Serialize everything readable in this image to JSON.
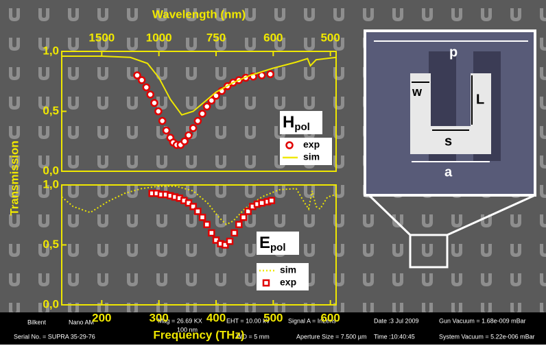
{
  "chart_data": [
    {
      "type": "line",
      "title": "Wavelength (nm)",
      "ylabel": "Transmission",
      "xlim": [
        130,
        610
      ],
      "ylim": [
        0,
        1
      ],
      "x2ticks": [
        {
          "value": 200,
          "label": "1500"
        },
        {
          "value": 300,
          "label": "1000"
        },
        {
          "value": 400,
          "label": "750"
        },
        {
          "value": 500,
          "label": "600"
        },
        {
          "value": 600,
          "label": "500"
        }
      ],
      "yticks": [
        {
          "value": 0,
          "label": "0,0"
        },
        {
          "value": 0.5,
          "label": "0,5"
        },
        {
          "value": 1,
          "label": "1,0"
        }
      ],
      "legend_title": "H",
      "legend_title_sub": "pol",
      "series": [
        {
          "name": "exp",
          "color": "#e00000",
          "style": "circle",
          "x": [
            262,
            270,
            278,
            285,
            292,
            299,
            306,
            313,
            320,
            325,
            331,
            338,
            345,
            352,
            360,
            368,
            376,
            384,
            392,
            400,
            410,
            420,
            430,
            440,
            452,
            465,
            480,
            495
          ],
          "values": [
            0.8,
            0.76,
            0.7,
            0.64,
            0.57,
            0.5,
            0.42,
            0.34,
            0.28,
            0.24,
            0.22,
            0.22,
            0.25,
            0.3,
            0.36,
            0.42,
            0.48,
            0.54,
            0.59,
            0.63,
            0.67,
            0.71,
            0.74,
            0.76,
            0.78,
            0.79,
            0.8,
            0.81
          ]
        },
        {
          "name": "sim",
          "color": "#f0e800",
          "style": "solid",
          "x": [
            130,
            200,
            250,
            280,
            300,
            320,
            340,
            360,
            380,
            400,
            430,
            460,
            500,
            540,
            560,
            565,
            575,
            610
          ],
          "values": [
            0.96,
            0.96,
            0.95,
            0.9,
            0.78,
            0.6,
            0.47,
            0.5,
            0.58,
            0.66,
            0.74,
            0.8,
            0.86,
            0.91,
            0.94,
            0.88,
            0.93,
            0.95
          ]
        }
      ]
    },
    {
      "type": "line",
      "xlabel": "Frequency (THz)",
      "xlim": [
        130,
        610
      ],
      "ylim": [
        0,
        1
      ],
      "xticks": [
        200,
        300,
        400,
        500,
        600
      ],
      "yticks": [
        {
          "value": 0,
          "label": "0,0"
        },
        {
          "value": 0.5,
          "label": "0,5"
        },
        {
          "value": 1,
          "label": "1,0"
        }
      ],
      "legend_title": "E",
      "legend_title_sub": "pol",
      "series": [
        {
          "name": "sim",
          "color": "#f0e800",
          "style": "dotted",
          "x": [
            130,
            150,
            180,
            210,
            240,
            270,
            300,
            330,
            360,
            385,
            405,
            418,
            430,
            450,
            480,
            510,
            540,
            555,
            562,
            568,
            575,
            582,
            595,
            610
          ],
          "values": [
            0.9,
            0.82,
            0.77,
            0.86,
            0.93,
            0.97,
            0.99,
            0.99,
            0.95,
            0.85,
            0.73,
            0.67,
            0.7,
            0.8,
            0.9,
            0.96,
            0.97,
            0.85,
            0.8,
            0.95,
            0.82,
            0.8,
            0.9,
            0.92
          ]
        },
        {
          "name": "exp",
          "color": "#e00000",
          "style": "square",
          "x": [
            288,
            296,
            304,
            312,
            320,
            328,
            336,
            344,
            352,
            360,
            368,
            376,
            384,
            392,
            400,
            408,
            416,
            424,
            432,
            440,
            448,
            456,
            464,
            472,
            480,
            490,
            497
          ],
          "values": [
            0.93,
            0.93,
            0.92,
            0.92,
            0.91,
            0.9,
            0.89,
            0.87,
            0.85,
            0.82,
            0.78,
            0.73,
            0.67,
            0.6,
            0.54,
            0.51,
            0.5,
            0.53,
            0.6,
            0.67,
            0.73,
            0.78,
            0.82,
            0.84,
            0.85,
            0.86,
            0.87
          ]
        }
      ]
    }
  ],
  "inset": {
    "p": "p",
    "w": "w",
    "L": "L",
    "s": "s",
    "a": "a"
  },
  "footer": [
    "Bilkent",
    "Nano AM",
    "Mag = 26.69 KX",
    "EHT = 10.00 kV",
    "Signal A = InLens",
    "Date :3 Jul 2009",
    "Gun Vacuum = 1.68e-009 mBar",
    "Serial No. = SUPRA 35-29-76",
    "100 nm",
    "WD = 5 mm",
    "Aperture Size = 7.500 µm",
    "Time :10:40:45",
    "System Vacuum = 5.22e-006 mBar"
  ]
}
